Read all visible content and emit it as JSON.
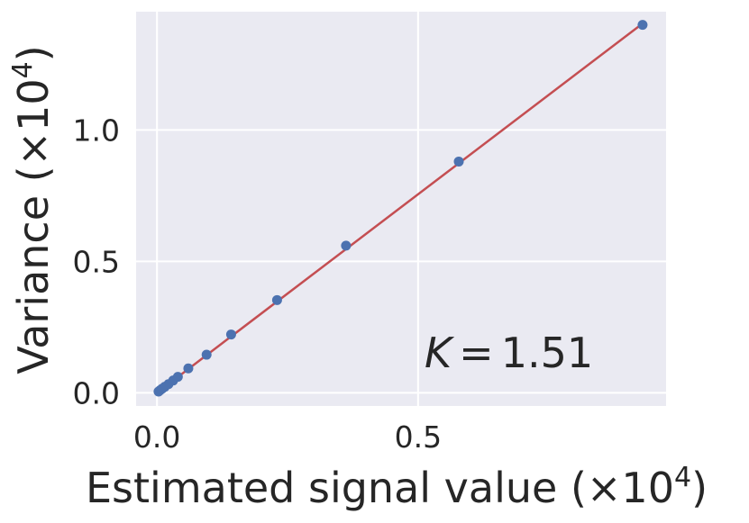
{
  "chart_data": {
    "type": "scatter",
    "title": "",
    "xlabel": "Estimated signal value (×10",
    "ylabel": "Variance (×10",
    "exponent": "4",
    "xlim": [
      -0.04,
      0.975
    ],
    "ylim": [
      -0.05,
      1.45
    ],
    "x_ticks": [
      0.0,
      0.5
    ],
    "x_tick_labels": [
      "0.0",
      "0.5"
    ],
    "y_ticks": [
      0.0,
      0.5,
      1.0
    ],
    "y_tick_labels": [
      "0.0",
      "0.5",
      "1.0"
    ],
    "grid": true,
    "points": {
      "x": [
        0.003,
        0.006,
        0.01,
        0.015,
        0.022,
        0.031,
        0.04,
        0.06,
        0.095,
        0.142,
        0.23,
        0.362,
        0.578,
        0.93
      ],
      "y": [
        0.005,
        0.01,
        0.016,
        0.023,
        0.033,
        0.047,
        0.061,
        0.093,
        0.145,
        0.222,
        0.353,
        0.56,
        0.88,
        1.4
      ]
    },
    "fit_line": {
      "x": [
        0.003,
        0.93
      ],
      "y": [
        0.0045,
        1.405
      ]
    },
    "annotation": {
      "symbol": "K",
      "equals": "=",
      "value": "1.51"
    },
    "colors": {
      "plot_background": "#eaeaf2",
      "grid": "#ffffff",
      "points": "#4c72b0",
      "line": "#c44e52",
      "text": "#262626"
    }
  }
}
